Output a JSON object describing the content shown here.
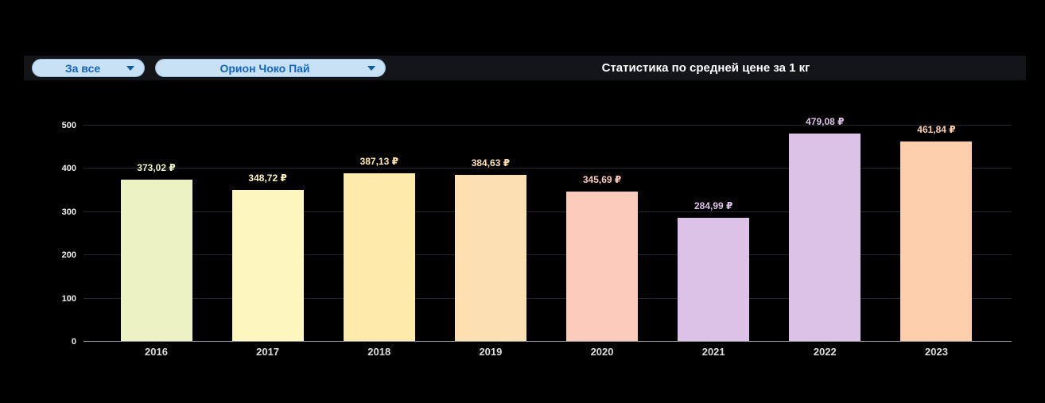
{
  "header": {
    "title": "Статистика по средней цене за 1 кг",
    "period_dropdown": {
      "value": "За все"
    },
    "product_dropdown": {
      "value": "Орион Чоко Пай"
    }
  },
  "chart_data": {
    "type": "bar",
    "title": "Статистика по средней цене за 1 кг",
    "categories": [
      "2016",
      "2017",
      "2018",
      "2019",
      "2020",
      "2021",
      "2022",
      "2023"
    ],
    "values": [
      373.02,
      348.72,
      387.13,
      384.63,
      345.69,
      284.99,
      479.08,
      461.84
    ],
    "value_labels": [
      "373,02 ₽",
      "348,72 ₽",
      "387,13 ₽",
      "384,63 ₽",
      "345,69 ₽",
      "284,99 ₽",
      "479,08 ₽",
      "461,84 ₽"
    ],
    "bar_colors": [
      "#edf2c5",
      "#fdf6bf",
      "#feeaab",
      "#fce0b1",
      "#fccbbc",
      "#dcc2e6",
      "#dcc2e6",
      "#fdcfac"
    ],
    "xlabel": "",
    "ylabel": "",
    "ylim": [
      0,
      500
    ],
    "yticks": [
      0,
      100,
      200,
      300,
      400,
      500
    ],
    "grid": true,
    "legend": "none",
    "currency": "₽"
  },
  "colors": {
    "background": "#000000",
    "toolbar_band": "#141519",
    "dropdown_bg": "#c9e1f4",
    "dropdown_text": "#1565c0",
    "grid_line": "#23262e",
    "axis_line": "#8d9199"
  }
}
